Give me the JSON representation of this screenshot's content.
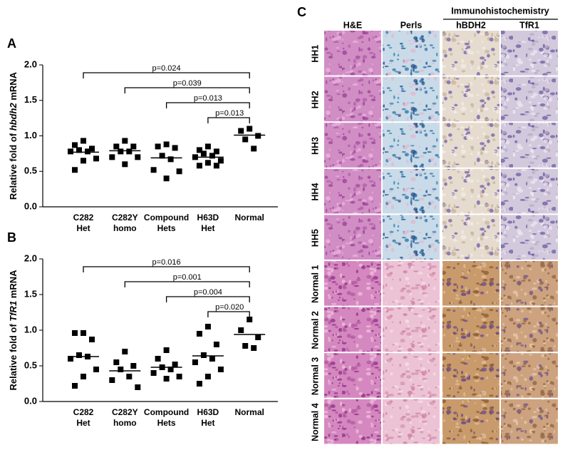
{
  "panel_labels": [
    "A",
    "B",
    "C"
  ],
  "chart_data": [
    {
      "type": "strip",
      "ylabel": [
        "Relative fold of ",
        "hbdh2",
        " mRNA"
      ],
      "categories": [
        [
          "C282",
          "Het"
        ],
        [
          "C282Y",
          "homo"
        ],
        [
          "Compound",
          "Hets"
        ],
        [
          "H63D",
          "Het"
        ],
        [
          "Normal"
        ]
      ],
      "values": [
        [
          0.93,
          0.87,
          0.82,
          0.8,
          0.78,
          0.78,
          0.68,
          0.65,
          0.52
        ],
        [
          0.93,
          0.85,
          0.85,
          0.78,
          0.78,
          0.7,
          0.7,
          0.6
        ],
        [
          0.88,
          0.85,
          0.83,
          0.72,
          0.67,
          0.52,
          0.5,
          0.4
        ],
        [
          0.85,
          0.8,
          0.78,
          0.75,
          0.72,
          0.7,
          0.65,
          0.62,
          0.58,
          0.58
        ],
        [
          1.1,
          1.07,
          1.0,
          0.95,
          0.82
        ]
      ],
      "means": [
        0.77,
        0.79,
        0.69,
        0.7,
        1.01
      ],
      "ylim": [
        0,
        2
      ],
      "yticks": [
        {
          "value": 0,
          "label": "0.0"
        },
        0.5,
        {
          "value": 1,
          "label": "1.0"
        },
        1.5,
        {
          "value": 2,
          "label": "2.0"
        }
      ],
      "comparisons": [
        "p=0.024",
        "p=0.039",
        "p=0.013",
        "p=0.013"
      ],
      "color": "#000000"
    },
    {
      "type": "strip",
      "ylabel": [
        "Relative fold of ",
        "TfR1",
        " mRNA"
      ],
      "categories": [
        [
          "C282",
          "Het"
        ],
        [
          "C282Y",
          "homo"
        ],
        [
          "Compound",
          "Hets"
        ],
        [
          "H63D",
          "Het"
        ],
        [
          "Normal"
        ]
      ],
      "values": [
        [
          0.96,
          0.96,
          0.87,
          0.65,
          0.63,
          0.6,
          0.45,
          0.35,
          0.22
        ],
        [
          0.7,
          0.55,
          0.5,
          0.45,
          0.35,
          0.3,
          0.2
        ],
        [
          0.72,
          0.6,
          0.52,
          0.48,
          0.45,
          0.4,
          0.35,
          0.32
        ],
        [
          1.05,
          0.95,
          0.8,
          0.65,
          0.6,
          0.55,
          0.45,
          0.35,
          0.25
        ],
        [
          1.15,
          1.0,
          0.9,
          0.78,
          0.75
        ]
      ],
      "means": [
        0.63,
        0.43,
        0.48,
        0.64,
        0.94
      ],
      "ylim": [
        0,
        2
      ],
      "yticks": [
        {
          "value": 0,
          "label": "0.0"
        },
        0.5,
        {
          "value": 1,
          "label": "1.0"
        },
        1.5,
        {
          "value": 2,
          "label": "2.0"
        }
      ],
      "comparisons": [
        "p=0.016",
        "p=0.001",
        "p=0.004",
        "p=0.020"
      ],
      "color": "#000000"
    }
  ],
  "histology": {
    "group_header": "Immunohistochemistry",
    "columns": [
      "H&E",
      "Perls",
      "hBDH2",
      "TfR1"
    ],
    "rows": [
      "HH1",
      "HH2",
      "HH3",
      "HH4",
      "HH5",
      "Normal 1",
      "Normal 2",
      "Normal 3",
      "Normal 4"
    ]
  }
}
